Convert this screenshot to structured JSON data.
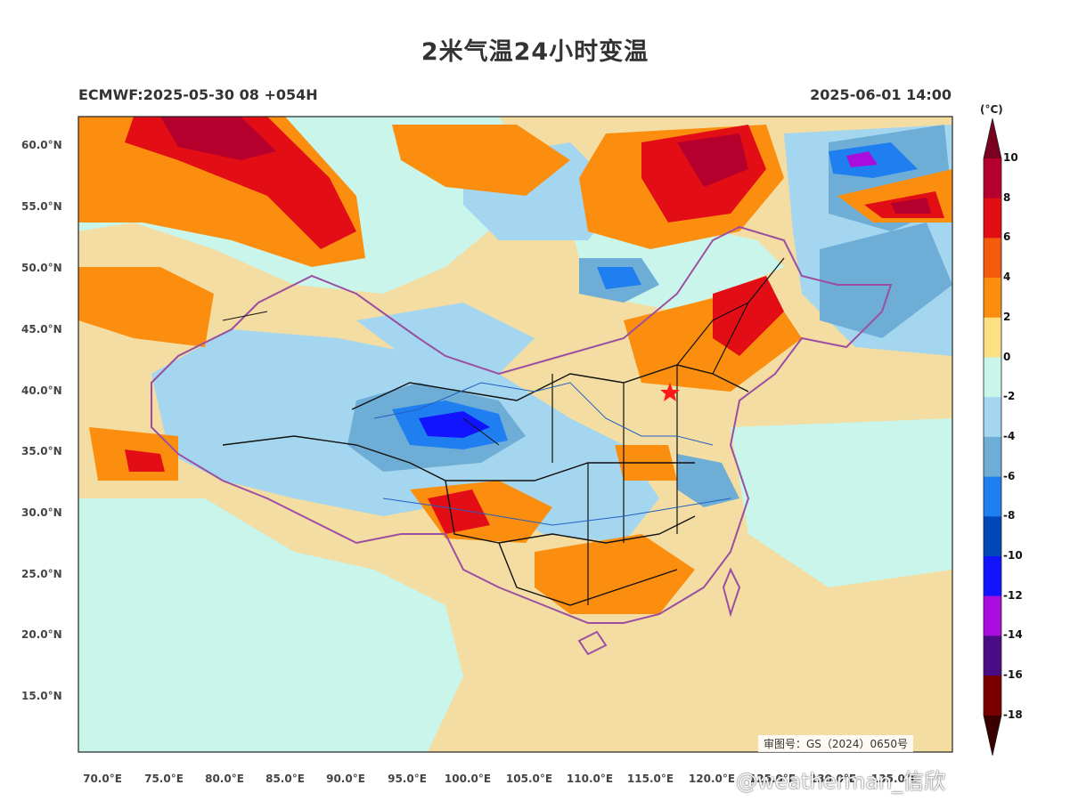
{
  "header": {
    "title": "2米气温24小时变温",
    "model_run": "ECMWF:2025-05-30 08 +054H",
    "valid_time": "2025-06-01 14:00"
  },
  "map": {
    "lat_ticks": [
      "60.0°N",
      "55.0°N",
      "50.0°N",
      "45.0°N",
      "40.0°N",
      "35.0°N",
      "30.0°N",
      "25.0°N",
      "20.0°N",
      "15.0°N"
    ],
    "lon_ticks": [
      "70.0°E",
      "75.0°E",
      "80.0°E",
      "85.0°E",
      "90.0°E",
      "95.0°E",
      "100.0°E",
      "105.0°E",
      "110.0°E",
      "115.0°E",
      "120.0°E",
      "125.0°E",
      "130.0°E",
      "135.0°E"
    ],
    "lat_range": [
      10.5,
      62.5
    ],
    "lon_range": [
      67.5,
      138
    ],
    "capital_marker": "red star (Beijing)",
    "approval_no": "审图号：GS（2024）0650号"
  },
  "colorbar": {
    "unit": "(°C)",
    "labels": [
      "10",
      "8",
      "6",
      "4",
      "2",
      "0",
      "-2",
      "-4",
      "-6",
      "-8",
      "-10",
      "-12",
      "-14",
      "-16",
      "-18"
    ],
    "colors": [
      "#b5002e",
      "#e30d16",
      "#f25c0c",
      "#fb8e0e",
      "#fde083",
      "#c9f5eb",
      "#a5d6f0",
      "#6eaed6",
      "#1f7ef0",
      "#0048b8",
      "#1314ff",
      "#a90ede",
      "#4a0c85",
      "#7a0000"
    ],
    "top_arrow_color": "#7a0020",
    "bottom_arrow_color": "#3a0000"
  },
  "watermark": "@weatherman_信欣"
}
